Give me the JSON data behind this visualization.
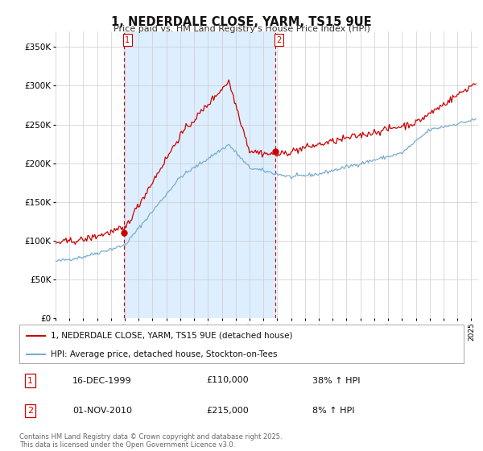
{
  "title": "1, NEDERDALE CLOSE, YARM, TS15 9UE",
  "subtitle": "Price paid vs. HM Land Registry's House Price Index (HPI)",
  "purchase1_price": 110000,
  "purchase1_label": "16-DEC-1999",
  "purchase1_hpi": "38% ↑ HPI",
  "purchase2_price": 215000,
  "purchase2_label": "01-NOV-2010",
  "purchase2_hpi": "8% ↑ HPI",
  "red_line_color": "#cc0000",
  "blue_line_color": "#7aadcc",
  "shading_color": "#ddeeff",
  "dashed_line_color": "#cc0000",
  "background_color": "#ffffff",
  "grid_color": "#cccccc",
  "legend_line1": "1, NEDERDALE CLOSE, YARM, TS15 9UE (detached house)",
  "legend_line2": "HPI: Average price, detached house, Stockton-on-Tees",
  "footnote": "Contains HM Land Registry data © Crown copyright and database right 2025.\nThis data is licensed under the Open Government Licence v3.0.",
  "ylim": [
    0,
    370000
  ],
  "yticks": [
    0,
    50000,
    100000,
    150000,
    200000,
    250000,
    300000,
    350000
  ],
  "ytick_labels": [
    "£0",
    "£50K",
    "£100K",
    "£150K",
    "£200K",
    "£250K",
    "£300K",
    "£350K"
  ]
}
